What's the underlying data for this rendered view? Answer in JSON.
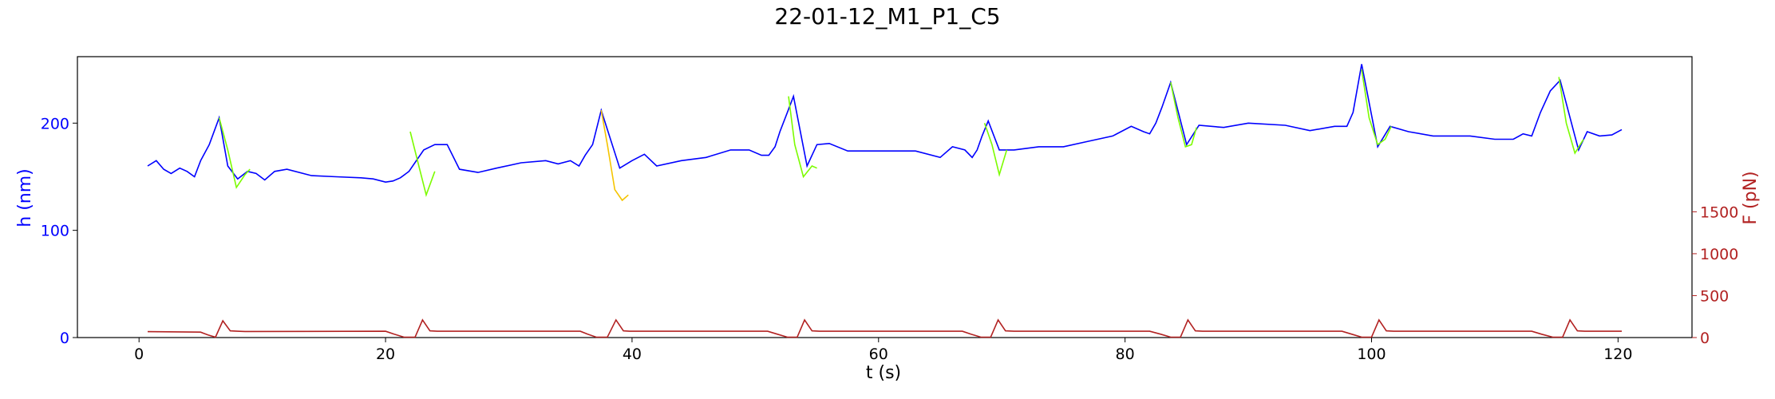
{
  "chart_data": {
    "type": "line",
    "title": "22-01-12_M1_P1_C5",
    "xlabel": "t (s)",
    "ylabel": "h (nm)",
    "y2label": "F (pN)",
    "xlim": [
      -5,
      126
    ],
    "ylim": [
      0,
      262
    ],
    "y2lim": [
      0,
      3350
    ],
    "x_ticks": [
      0,
      20,
      40,
      60,
      80,
      100,
      120
    ],
    "y_ticks": [
      0,
      100,
      200
    ],
    "y2_ticks": [
      0,
      500,
      1000,
      1500
    ],
    "grid": false,
    "colors": {
      "height": "#0000ff",
      "decompression_green": "#7cfc00",
      "decompression_gold": "#f5c400",
      "force": "#b22222",
      "left_axis": "#0000ff",
      "right_axis": "#b22222"
    },
    "series": [
      {
        "axis": "left",
        "x": [
          0.7,
          1.4,
          2.0,
          2.6,
          3.3,
          3.9,
          4.5,
          5.0,
          5.7,
          6.5,
          7.2,
          8.0,
          8.8,
          9.5,
          10.2,
          11.0,
          12.0,
          14.0,
          16.0,
          18.0,
          19.0,
          20.0,
          20.6,
          21.2,
          21.9,
          23.1,
          24.0,
          25.0,
          26.0,
          27.5,
          29.0,
          31.0,
          33.0,
          34.0,
          35.0,
          35.7,
          36.2,
          36.8,
          37.5,
          39.0,
          40.0,
          41.0,
          42.0,
          44.0,
          46.0,
          48.0,
          49.5,
          50.5,
          51.1,
          51.6,
          52.0,
          52.6,
          53.1,
          54.2,
          55.0,
          56.0,
          57.5,
          60.0,
          63.0,
          65.0,
          66.0,
          67.0,
          67.6,
          68.0,
          68.4,
          68.9,
          69.8,
          71.0,
          73.0,
          75.0,
          77.0,
          79.0,
          80.5,
          81.5,
          82.0,
          82.5,
          83.0,
          83.7,
          85.0,
          86.0,
          88.0,
          90.0,
          93.0,
          95.0,
          97.0,
          98.0,
          98.5,
          99.2,
          100.5,
          101.5,
          103.0,
          105.0,
          108.0,
          110.0,
          111.5,
          112.3,
          113.0,
          113.7,
          114.5,
          115.3,
          116.8,
          117.5,
          118.5,
          119.5,
          120.3
        ],
        "y": [
          160,
          165,
          157,
          153,
          158,
          155,
          150,
          165,
          180,
          205,
          160,
          148,
          155,
          153,
          147,
          155,
          157,
          151,
          150,
          149,
          148,
          145,
          146,
          149,
          155,
          175,
          180,
          180,
          157,
          154,
          158,
          163,
          165,
          162,
          165,
          160,
          170,
          180,
          212,
          158,
          165,
          171,
          160,
          165,
          168,
          175,
          175,
          170,
          170,
          178,
          192,
          210,
          225,
          160,
          180,
          181,
          174,
          174,
          174,
          168,
          178,
          175,
          168,
          175,
          188,
          202,
          175,
          175,
          178,
          178,
          183,
          188,
          197,
          192,
          190,
          200,
          215,
          238,
          180,
          198,
          196,
          200,
          198,
          193,
          197,
          197,
          210,
          255,
          178,
          197,
          192,
          188,
          188,
          185,
          185,
          190,
          188,
          210,
          230,
          240,
          175,
          192,
          188,
          189,
          194
        ]
      },
      {
        "axis": "left",
        "x": [
          6.5,
          7.2,
          7.9,
          8.6,
          9.0,
          22.0,
          22.7,
          23.3,
          24.0,
          37.5,
          38.0,
          38.6,
          39.2,
          39.7,
          52.7,
          53.2,
          53.9,
          54.6,
          55.0,
          68.6,
          69.2,
          69.8,
          70.4,
          83.7,
          84.3,
          84.9,
          85.4,
          85.8,
          99.2,
          99.8,
          100.5,
          101.1,
          101.6,
          115.2,
          115.8,
          116.5,
          117.2
        ],
        "y": [
          205,
          175,
          140,
          152,
          157,
          192,
          160,
          133,
          155,
          212,
          180,
          138,
          128,
          133,
          225,
          180,
          150,
          160,
          158,
          200,
          180,
          152,
          175,
          238,
          205,
          178,
          180,
          196,
          250,
          205,
          180,
          185,
          197,
          243,
          200,
          172,
          185
        ]
      },
      {
        "axis": "right",
        "x": [
          0.7,
          5.0,
          5.6,
          6.2,
          6.8,
          7.4,
          8.0,
          8.6,
          20.0,
          20.7,
          21.5,
          22.4,
          23.0,
          23.6,
          24.2,
          35.8,
          36.4,
          37.1,
          38.0,
          38.7,
          39.3,
          39.8,
          51.0,
          51.8,
          52.6,
          53.4,
          54.0,
          54.6,
          55.2,
          66.8,
          67.5,
          68.3,
          69.1,
          69.7,
          70.3,
          71.0,
          82.0,
          82.9,
          83.7,
          84.5,
          85.1,
          85.7,
          86.3,
          97.6,
          98.4,
          99.2,
          100.0,
          100.6,
          101.2,
          101.8,
          113.0,
          113.8,
          114.7,
          115.5,
          116.1,
          116.7,
          117.3,
          120.3
        ],
        "y": [
          70,
          65,
          30,
          5,
          200,
          80,
          75,
          72,
          75,
          40,
          5,
          5,
          210,
          80,
          75,
          75,
          40,
          5,
          5,
          210,
          80,
          75,
          75,
          40,
          5,
          5,
          210,
          80,
          75,
          75,
          40,
          5,
          5,
          210,
          80,
          75,
          75,
          40,
          5,
          5,
          210,
          80,
          75,
          75,
          40,
          5,
          5,
          210,
          80,
          75,
          75,
          40,
          5,
          5,
          210,
          80,
          75,
          75
        ]
      }
    ]
  }
}
